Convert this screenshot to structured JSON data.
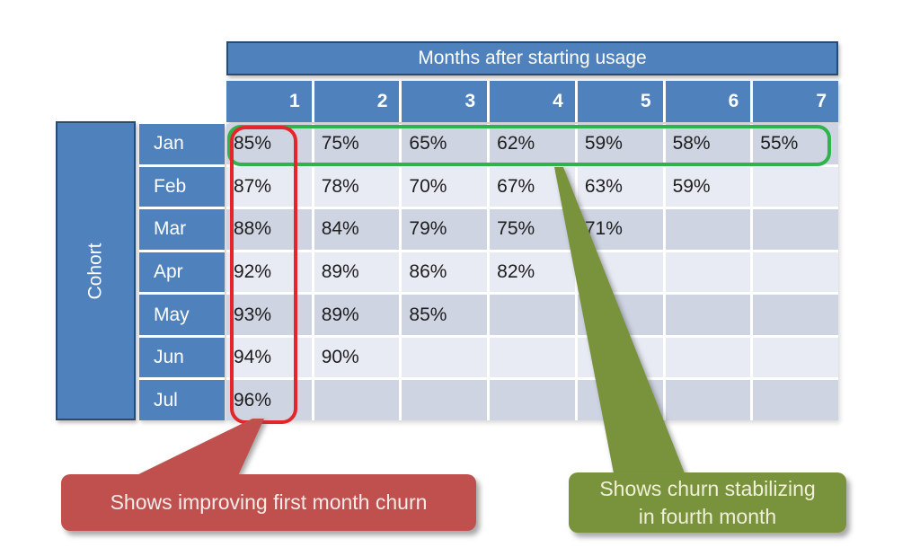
{
  "chart_data": {
    "type": "table",
    "title": "Months after starting usage",
    "row_axis_label": "Cohort",
    "columns": [
      "1",
      "2",
      "3",
      "4",
      "5",
      "6",
      "7"
    ],
    "rows": [
      {
        "label": "Jan",
        "values": [
          "85%",
          "75%",
          "65%",
          "62%",
          "59%",
          "58%",
          "55%"
        ]
      },
      {
        "label": "Feb",
        "values": [
          "87%",
          "78%",
          "70%",
          "67%",
          "63%",
          "59%",
          ""
        ]
      },
      {
        "label": "Mar",
        "values": [
          "88%",
          "84%",
          "79%",
          "75%",
          "71%",
          "",
          ""
        ]
      },
      {
        "label": "Apr",
        "values": [
          "92%",
          "89%",
          "86%",
          "82%",
          "",
          "",
          ""
        ]
      },
      {
        "label": "May",
        "values": [
          "93%",
          "89%",
          "85%",
          "",
          "",
          "",
          ""
        ]
      },
      {
        "label": "Jun",
        "values": [
          "94%",
          "90%",
          "",
          "",
          "",
          "",
          ""
        ]
      },
      {
        "label": "Jul",
        "values": [
          "96%",
          "",
          "",
          "",
          "",
          "",
          ""
        ]
      }
    ],
    "annotations": [
      {
        "target": "column 1 (Jan-Jul)",
        "outline_color": "#E6242B",
        "text": "Shows improving first month churn"
      },
      {
        "target": "row Jan (months 1-7)",
        "outline_color": "#2FB44D",
        "text": "Shows churn stabilizing in fourth month"
      }
    ],
    "legend_position": "none",
    "grid": "white separators, alternating row shading"
  },
  "callouts": {
    "red": {
      "text": "Shows improving first month churn"
    },
    "green": {
      "line1": "Shows churn stabilizing",
      "line2": "in fourth month"
    }
  },
  "colors": {
    "header_blue": "#4F81BD",
    "header_border": "#2B4A6F",
    "row_shade_dark": "#CED4E2",
    "row_shade_light": "#E9EBF4",
    "red_callout_fill": "#C0504D",
    "green_callout_fill": "#78933C",
    "red_outline": "#E6242B",
    "green_outline": "#2FB44D"
  }
}
